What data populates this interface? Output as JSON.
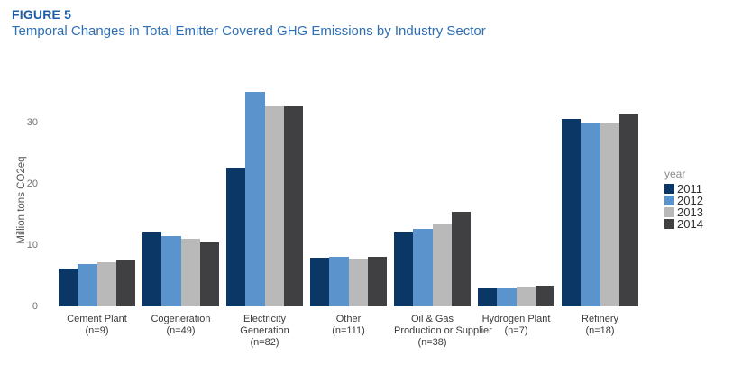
{
  "figure": {
    "label": "FIGURE 5",
    "title": "Temporal Changes in Total Emitter Covered GHG Emissions by Industry Sector"
  },
  "chart_data": {
    "type": "bar",
    "title": "Temporal Changes in Total Emitter Covered GHG Emissions by Industry Sector",
    "xlabel": "",
    "ylabel": "Million tons CO2eq",
    "ylim": [
      0,
      36
    ],
    "yticks": [
      0,
      10,
      20,
      30
    ],
    "grid": false,
    "legend": {
      "title": "year",
      "position": "right"
    },
    "categories": [
      {
        "name": "Cement Plant",
        "n": 9,
        "label_lines": [
          "Cement Plant",
          "(n=9)"
        ]
      },
      {
        "name": "Cogeneration",
        "n": 49,
        "label_lines": [
          "Cogeneration",
          "(n=49)"
        ]
      },
      {
        "name": "Electricity Generation",
        "n": 82,
        "label_lines": [
          "Electricity",
          "Generation",
          "(n=82)"
        ]
      },
      {
        "name": "Other",
        "n": 111,
        "label_lines": [
          "Other",
          "(n=111)"
        ]
      },
      {
        "name": "Oil & Gas Production or Supplier",
        "n": 38,
        "label_lines": [
          "Oil & Gas",
          "Production or Supplier",
          "(n=38)"
        ]
      },
      {
        "name": "Hydrogen Plant",
        "n": 7,
        "label_lines": [
          "Hydrogen Plant",
          "(n=7)"
        ]
      },
      {
        "name": "Refinery",
        "n": 18,
        "label_lines": [
          "Refinery",
          "(n=18)"
        ]
      }
    ],
    "series": [
      {
        "name": "2011",
        "color": "#0b3767",
        "values": [
          6.2,
          12.2,
          22.6,
          8.0,
          12.2,
          2.9,
          30.6
        ]
      },
      {
        "name": "2012",
        "color": "#5b94cc",
        "values": [
          6.9,
          11.5,
          35.0,
          8.1,
          12.7,
          3.0,
          30.0
        ]
      },
      {
        "name": "2013",
        "color": "#b9b9ba",
        "values": [
          7.2,
          11.0,
          32.7,
          7.8,
          13.5,
          3.3,
          29.8
        ]
      },
      {
        "name": "2014",
        "color": "#404042",
        "values": [
          7.7,
          10.5,
          32.7,
          8.1,
          15.4,
          3.4,
          31.3
        ]
      }
    ]
  },
  "colors": {
    "figure_label": "#1d5ca6",
    "figure_title": "#2e6fb5",
    "axis_text": "#757575",
    "axis_title_text": "#555555",
    "category_text": "#3a3a3a",
    "legend_title_text": "#8c8c8c",
    "legend_text": "#2f2f2f",
    "background": "#ffffff"
  }
}
